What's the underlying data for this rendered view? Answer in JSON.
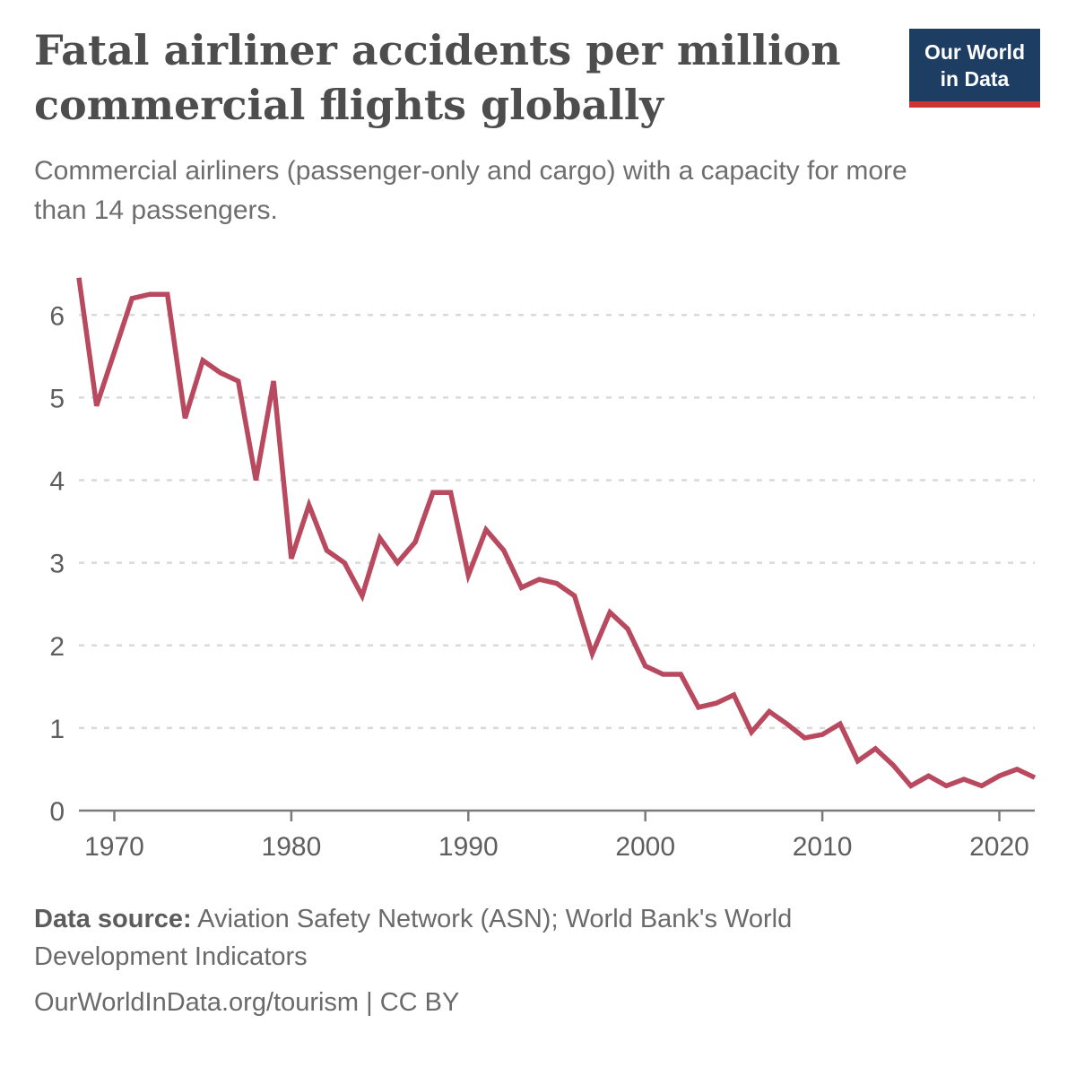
{
  "header": {
    "title_lines": [
      "Fatal airliner accidents per million",
      "commercial flights globally"
    ],
    "subtitle": "Commercial airliners (passenger-only and cargo) with a capacity for more than 14 passengers.",
    "logo": {
      "line1": "Our World",
      "line2": "in Data"
    }
  },
  "footer": {
    "source_label": "Data source:",
    "source_text": " Aviation Safety Network (ASN); World Bank's World Development Indicators",
    "credit_line": "OurWorldInData.org/tourism | CC BY"
  },
  "colors": {
    "title_text": "#4d4d4d",
    "subtitle_text": "#6e6e6e",
    "logo_background": "#1d3d63",
    "logo_underline": "#cf3335"
  },
  "chart_data": {
    "type": "line",
    "title": "Fatal airliner accidents per million commercial flights globally",
    "xlabel": "",
    "ylabel": "",
    "grid": "horizontal dashed",
    "legend": "none",
    "x_range": [
      1968,
      2022
    ],
    "y_max": 6.6,
    "y_ticks": [
      0,
      1,
      2,
      3,
      4,
      5,
      6
    ],
    "x_ticks": [
      1970,
      1980,
      1990,
      2000,
      2010,
      2020
    ],
    "series_name": "Fatal airliner accidents per million commercial flights",
    "x": [
      1968,
      1969,
      1970,
      1971,
      1972,
      1973,
      1974,
      1975,
      1976,
      1977,
      1978,
      1979,
      1980,
      1981,
      1982,
      1983,
      1984,
      1985,
      1986,
      1987,
      1988,
      1989,
      1990,
      1991,
      1992,
      1993,
      1994,
      1995,
      1996,
      1997,
      1998,
      1999,
      2000,
      2001,
      2002,
      2003,
      2004,
      2005,
      2006,
      2007,
      2008,
      2009,
      2010,
      2011,
      2012,
      2013,
      2014,
      2015,
      2016,
      2017,
      2018,
      2019,
      2020,
      2021,
      2022
    ],
    "values": [
      6.45,
      4.9,
      5.55,
      6.2,
      6.25,
      6.25,
      4.75,
      5.45,
      5.3,
      5.2,
      4.0,
      5.2,
      3.05,
      3.7,
      3.15,
      3.0,
      2.6,
      3.3,
      3.0,
      3.25,
      3.85,
      3.85,
      2.85,
      3.4,
      3.15,
      2.7,
      2.8,
      2.75,
      2.6,
      1.9,
      2.4,
      2.2,
      1.75,
      1.65,
      1.65,
      1.25,
      1.3,
      1.4,
      0.95,
      1.2,
      1.05,
      0.88,
      0.92,
      1.05,
      0.6,
      0.75,
      0.55,
      0.3,
      0.42,
      0.3,
      0.38,
      0.3,
      0.42,
      0.5,
      0.4
    ],
    "colors": {
      "line": "#b8495f",
      "grid": "#d9d9d9",
      "axis": "#7a7a7a",
      "tick_text": "#5e5e5e"
    }
  }
}
